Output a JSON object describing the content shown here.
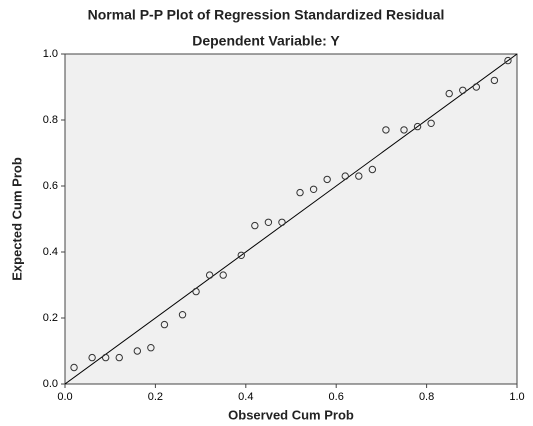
{
  "chart_data": {
    "type": "scatter",
    "title": "Normal P-P Plot of Regression Standardized Residual",
    "subtitle": "Dependent Variable: Y",
    "xlabel": "Observed Cum Prob",
    "ylabel": "Expected Cum Prob",
    "x": [
      0.02,
      0.06,
      0.09,
      0.12,
      0.16,
      0.19,
      0.22,
      0.26,
      0.29,
      0.32,
      0.35,
      0.39,
      0.42,
      0.45,
      0.48,
      0.52,
      0.55,
      0.58,
      0.62,
      0.65,
      0.68,
      0.71,
      0.75,
      0.78,
      0.81,
      0.85,
      0.88,
      0.91,
      0.95,
      0.98
    ],
    "values": [
      0.05,
      0.08,
      0.08,
      0.08,
      0.1,
      0.11,
      0.18,
      0.21,
      0.28,
      0.33,
      0.33,
      0.39,
      0.48,
      0.49,
      0.49,
      0.58,
      0.59,
      0.62,
      0.63,
      0.63,
      0.65,
      0.77,
      0.77,
      0.78,
      0.79,
      0.88,
      0.89,
      0.9,
      0.92,
      0.98
    ],
    "xlim": [
      0,
      1
    ],
    "ylim": [
      0,
      1
    ],
    "xticks": [
      {
        "value": 0,
        "label": "0.0"
      },
      0.2,
      0.4,
      0.6,
      0.8,
      {
        "value": 1,
        "label": "1.0"
      }
    ],
    "yticks": [
      {
        "value": 0,
        "label": "0.0"
      },
      0.2,
      0.4,
      0.6,
      0.8,
      {
        "value": 1,
        "label": "1.0"
      }
    ],
    "reference_line": true,
    "grid": false
  }
}
